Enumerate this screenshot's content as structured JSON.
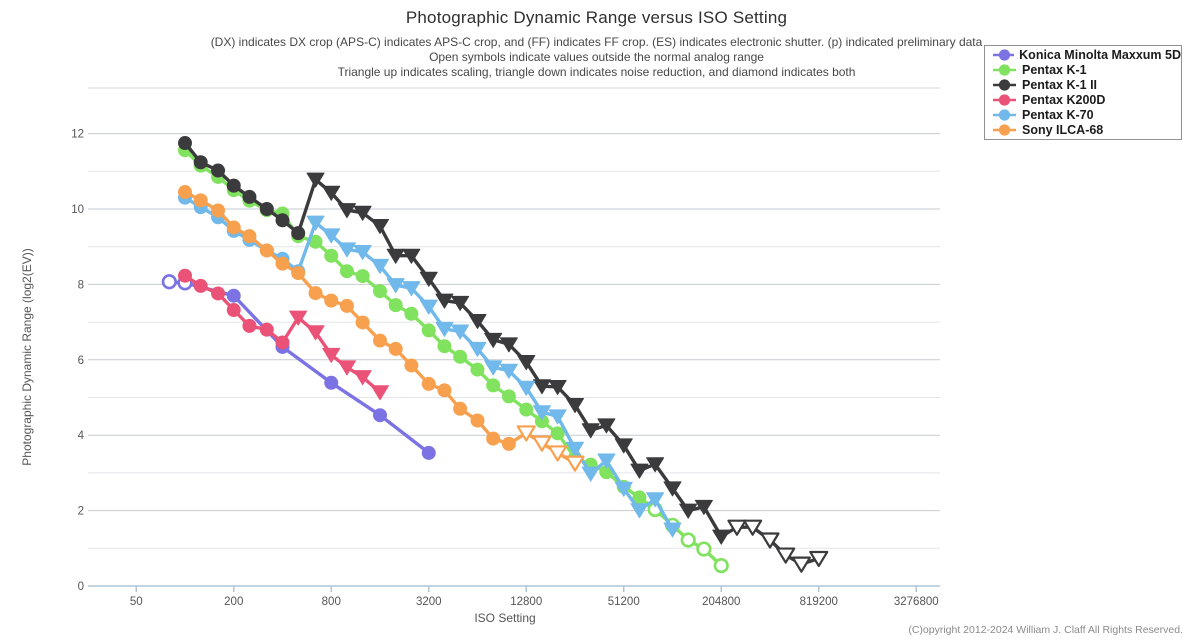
{
  "header": {
    "title": "Photographic Dynamic Range versus ISO Setting",
    "subtitle1": "(DX) indicates DX crop (APS-C) indicates APS-C crop, and (FF) indicates FF crop. (ES) indicates electronic shutter. (p) indicated preliminary data",
    "subtitle2": "Open symbols indicate values outside the normal analog range",
    "subtitle3": "Triangle up indicates scaling, triangle down indicates noise reduction, and diamond indicates both"
  },
  "footer": {
    "copyright": "(C)opyright 2012-2024 William J. Claff All Rights Reserved."
  },
  "axes": {
    "x_label": "ISO Setting",
    "y_label": "Photographic Dynamic Range (log2(EV))",
    "x_ticks": [
      50,
      200,
      800,
      3200,
      12800,
      51200,
      204800,
      819200,
      3276800
    ],
    "y_ticks": [
      0,
      2,
      4,
      6,
      8,
      10,
      12
    ]
  },
  "colors": {
    "gridline_major": "#c6cbcf",
    "gridline_minor": "#e2e5e7",
    "axis_line": "#aec6d8",
    "tick_label": "#555555",
    "plot_top_border": "#d9d9d9"
  },
  "chart_data": {
    "type": "line",
    "x_scale": "log2",
    "title": "Photographic Dynamic Range versus ISO Setting",
    "xlabel": "ISO Setting",
    "ylabel": "Photographic Dynamic Range (log2(EV))",
    "xlim": [
      31,
      4600000
    ],
    "ylim": [
      0,
      12.2
    ],
    "grid": "horizontal-only",
    "legend_position": "top-right",
    "marker_legend": {
      "c": "filled circle",
      "oc": "open circle",
      "td": "triangle down (noise reduction)",
      "otd": "open triangle down"
    },
    "series": [
      {
        "name": "Konica Minolta Maxxum 5D",
        "color": "#7b73e3",
        "points": [
          [
            80,
            8.07,
            "oc"
          ],
          [
            100,
            8.04,
            "oc"
          ],
          [
            200,
            7.7
          ],
          [
            400,
            6.34
          ],
          [
            800,
            5.39
          ],
          [
            1600,
            4.53
          ],
          [
            3200,
            3.53
          ]
        ]
      },
      {
        "name": "Pentax K-1",
        "color": "#80e25e",
        "points": [
          [
            100,
            11.56
          ],
          [
            125,
            11.15
          ],
          [
            160,
            10.85
          ],
          [
            200,
            10.5
          ],
          [
            250,
            10.22
          ],
          [
            320,
            9.97
          ],
          [
            400,
            9.88
          ],
          [
            500,
            9.28
          ],
          [
            640,
            9.13
          ],
          [
            800,
            8.76
          ],
          [
            1000,
            8.35
          ],
          [
            1250,
            8.22
          ],
          [
            1600,
            7.82
          ],
          [
            2000,
            7.45
          ],
          [
            2500,
            7.22
          ],
          [
            3200,
            6.78
          ],
          [
            4000,
            6.36
          ],
          [
            5000,
            6.08
          ],
          [
            6400,
            5.74
          ],
          [
            8000,
            5.32
          ],
          [
            10000,
            5.03
          ],
          [
            12800,
            4.68
          ],
          [
            16000,
            4.37
          ],
          [
            20000,
            4.05
          ],
          [
            25600,
            3.4
          ],
          [
            32000,
            3.22
          ],
          [
            40000,
            3.02
          ],
          [
            51200,
            2.63
          ],
          [
            64000,
            2.35
          ],
          [
            80000,
            2.03,
            "oc"
          ],
          [
            102400,
            1.61,
            "oc"
          ],
          [
            128000,
            1.22,
            "oc"
          ],
          [
            160000,
            0.98,
            "oc"
          ],
          [
            204800,
            0.54,
            "oc"
          ]
        ]
      },
      {
        "name": "Pentax K-1 II",
        "color": "#3b3b3d",
        "points": [
          [
            100,
            11.75
          ],
          [
            125,
            11.24
          ],
          [
            160,
            11.02
          ],
          [
            200,
            10.62
          ],
          [
            250,
            10.32
          ],
          [
            320,
            10.0
          ],
          [
            400,
            9.7
          ],
          [
            500,
            9.36
          ],
          [
            640,
            10.78,
            "td"
          ],
          [
            800,
            10.43,
            "td"
          ],
          [
            1000,
            9.97,
            "td"
          ],
          [
            1250,
            9.9,
            "td"
          ],
          [
            1600,
            9.55,
            "td"
          ],
          [
            2000,
            8.76,
            "td"
          ],
          [
            2500,
            8.76,
            "td"
          ],
          [
            3200,
            8.15,
            "td"
          ],
          [
            4000,
            7.57,
            "td"
          ],
          [
            5000,
            7.51,
            "td"
          ],
          [
            6400,
            7.03,
            "td"
          ],
          [
            8000,
            6.53,
            "td"
          ],
          [
            10000,
            6.41,
            "td"
          ],
          [
            12800,
            5.94,
            "td"
          ],
          [
            16000,
            5.3,
            "td"
          ],
          [
            20000,
            5.28,
            "td"
          ],
          [
            25600,
            4.8,
            "td"
          ],
          [
            32000,
            4.13,
            "td"
          ],
          [
            40000,
            4.26,
            "td"
          ],
          [
            51200,
            3.73,
            "td"
          ],
          [
            64000,
            3.06,
            "td"
          ],
          [
            80000,
            3.23,
            "td"
          ],
          [
            102400,
            2.59,
            "td"
          ],
          [
            128000,
            2.0,
            "td"
          ],
          [
            160000,
            2.1,
            "td"
          ],
          [
            204800,
            1.31,
            "td"
          ],
          [
            256000,
            1.56,
            "otd"
          ],
          [
            320000,
            1.56,
            "otd"
          ],
          [
            409600,
            1.22,
            "otd"
          ],
          [
            512000,
            0.82,
            "otd"
          ],
          [
            640000,
            0.58,
            "otd"
          ],
          [
            819200,
            0.73,
            "otd"
          ]
        ]
      },
      {
        "name": "Pentax K200D",
        "color": "#eb5277",
        "points": [
          [
            100,
            8.23
          ],
          [
            125,
            7.96
          ],
          [
            160,
            7.76
          ],
          [
            200,
            7.32
          ],
          [
            250,
            6.9
          ],
          [
            320,
            6.8
          ],
          [
            400,
            6.46
          ],
          [
            500,
            7.12,
            "td"
          ],
          [
            640,
            6.73,
            "td"
          ],
          [
            800,
            6.13,
            "td"
          ],
          [
            1000,
            5.8,
            "td"
          ],
          [
            1250,
            5.54,
            "td"
          ],
          [
            1600,
            5.14,
            "td"
          ]
        ]
      },
      {
        "name": "Pentax K-70",
        "color": "#70b9ea",
        "points": [
          [
            100,
            10.3
          ],
          [
            125,
            10.05
          ],
          [
            160,
            9.78
          ],
          [
            200,
            9.42
          ],
          [
            250,
            9.18
          ],
          [
            320,
            8.9
          ],
          [
            400,
            8.68
          ],
          [
            500,
            8.35
          ],
          [
            640,
            9.64,
            "td"
          ],
          [
            800,
            9.3,
            "td"
          ],
          [
            1000,
            8.93,
            "td"
          ],
          [
            1250,
            8.86,
            "td"
          ],
          [
            1600,
            8.49,
            "td"
          ],
          [
            2000,
            7.98,
            "td"
          ],
          [
            2500,
            7.9,
            "td"
          ],
          [
            3200,
            7.41,
            "td"
          ],
          [
            4000,
            6.82,
            "td"
          ],
          [
            5000,
            6.75,
            "td"
          ],
          [
            6400,
            6.29,
            "td"
          ],
          [
            8000,
            5.8,
            "td"
          ],
          [
            10000,
            5.71,
            "td"
          ],
          [
            12800,
            5.26,
            "td"
          ],
          [
            16000,
            4.61,
            "td"
          ],
          [
            20000,
            4.5,
            "td"
          ],
          [
            25600,
            3.64,
            "td"
          ],
          [
            32000,
            2.98,
            "td"
          ],
          [
            40000,
            3.33,
            "td"
          ],
          [
            51200,
            2.58,
            "td"
          ],
          [
            64000,
            2.01,
            "td"
          ],
          [
            80000,
            2.3,
            "td"
          ],
          [
            102400,
            1.5,
            "td"
          ]
        ]
      },
      {
        "name": "Sony ILCA-68",
        "color": "#f7a04e",
        "points": [
          [
            100,
            10.45
          ],
          [
            125,
            10.23
          ],
          [
            160,
            9.96
          ],
          [
            200,
            9.51
          ],
          [
            250,
            9.28
          ],
          [
            320,
            8.9
          ],
          [
            400,
            8.55
          ],
          [
            500,
            8.3
          ],
          [
            640,
            7.77
          ],
          [
            800,
            7.57
          ],
          [
            1000,
            7.43
          ],
          [
            1250,
            6.99
          ],
          [
            1600,
            6.51
          ],
          [
            2000,
            6.29
          ],
          [
            2500,
            5.85
          ],
          [
            3200,
            5.36
          ],
          [
            4000,
            5.19
          ],
          [
            5000,
            4.7
          ],
          [
            6400,
            4.39
          ],
          [
            8000,
            3.91
          ],
          [
            10000,
            3.77
          ],
          [
            12800,
            4.06,
            "otd"
          ],
          [
            16000,
            3.79,
            "otd"
          ],
          [
            20000,
            3.53,
            "otd"
          ],
          [
            25600,
            3.26,
            "otd"
          ]
        ]
      }
    ]
  }
}
